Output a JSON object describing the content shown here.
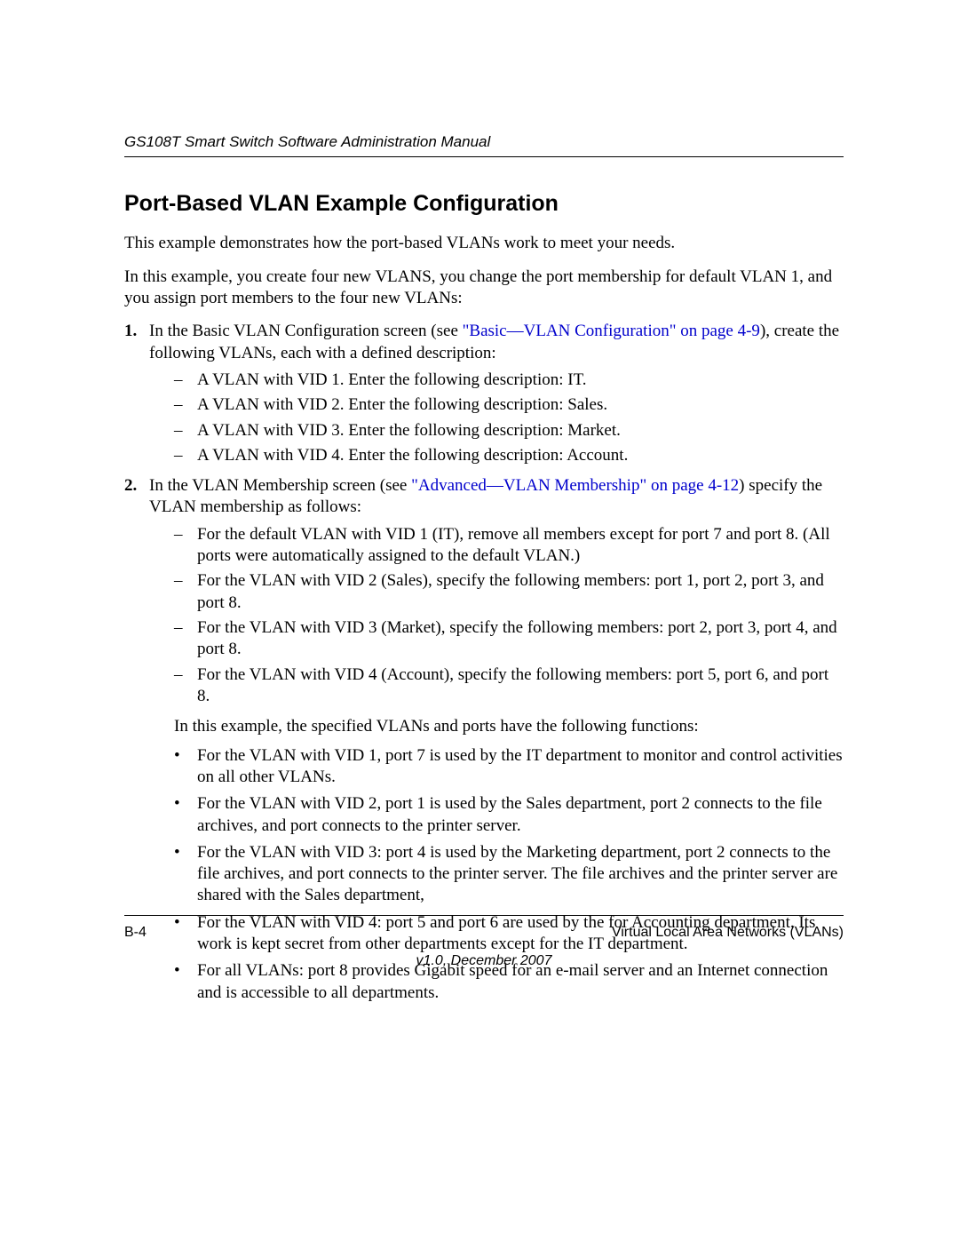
{
  "header": {
    "running_title": "GS108T Smart Switch Software Administration Manual"
  },
  "section": {
    "title": "Port-Based VLAN Example Configuration",
    "intro1": "This example demonstrates how the port-based VLANs work to meet your needs.",
    "intro2": "In this example, you create four new VLANS, you change the port membership for default VLAN 1, and you assign port members to the four new VLANs:"
  },
  "step1": {
    "pre": "In the Basic VLAN Configuration screen (see ",
    "link": "\"Basic—VLAN Configuration\" on page 4-9",
    "post": "), create the following VLANs, each with a defined description:",
    "items": [
      "A VLAN with VID 1. Enter the following description: IT.",
      "A VLAN with VID 2. Enter the following description: Sales.",
      "A VLAN with VID 3. Enter the following description: Market.",
      "A VLAN with VID 4. Enter the following description: Account."
    ]
  },
  "step2": {
    "pre": "In the VLAN Membership screen (see ",
    "link": "\"Advanced—VLAN Membership\" on page 4-12",
    "post": ") specify the VLAN membership as follows:",
    "items": [
      "For the default VLAN with VID 1 (IT), remove all members except for port 7 and port 8. (All ports were automatically assigned to the default VLAN.)",
      "For the VLAN with VID 2 (Sales), specify the following members: port 1, port 2, port 3, and port 8.",
      "For the VLAN with VID 3 (Market), specify the following members: port 2, port 3, port 4, and port 8.",
      "For the VLAN with VID 4 (Account), specify the following members: port 5, port 6, and port 8."
    ],
    "note": "In this example, the specified VLANs and ports have the following functions:",
    "bullets": [
      "For the VLAN with VID 1, port 7 is used by the IT department to monitor and control activities on all other VLANs.",
      "For the VLAN with VID 2, port 1 is used by the Sales department, port 2 connects to the file archives, and port connects to the printer server.",
      "For the VLAN with VID 3: port 4 is used by the Marketing department, port 2 connects to the file archives, and port connects to the printer server. The file archives and the printer server are shared with the Sales department,",
      "For the VLAN with VID 4: port 5 and port 6 are used by the for Accounting department. Its work is kept secret from other departments except for the IT department.",
      "For all VLANs: port 8 provides Gigabit speed for an e-mail server and an Internet connection and is accessible to all departments."
    ]
  },
  "footer": {
    "page": "B-4",
    "section": "Virtual Local Area Networks (VLANs)",
    "version": "v1.0, December 2007"
  },
  "colors": {
    "link": "#0000cc",
    "text": "#000000",
    "background": "#ffffff"
  }
}
